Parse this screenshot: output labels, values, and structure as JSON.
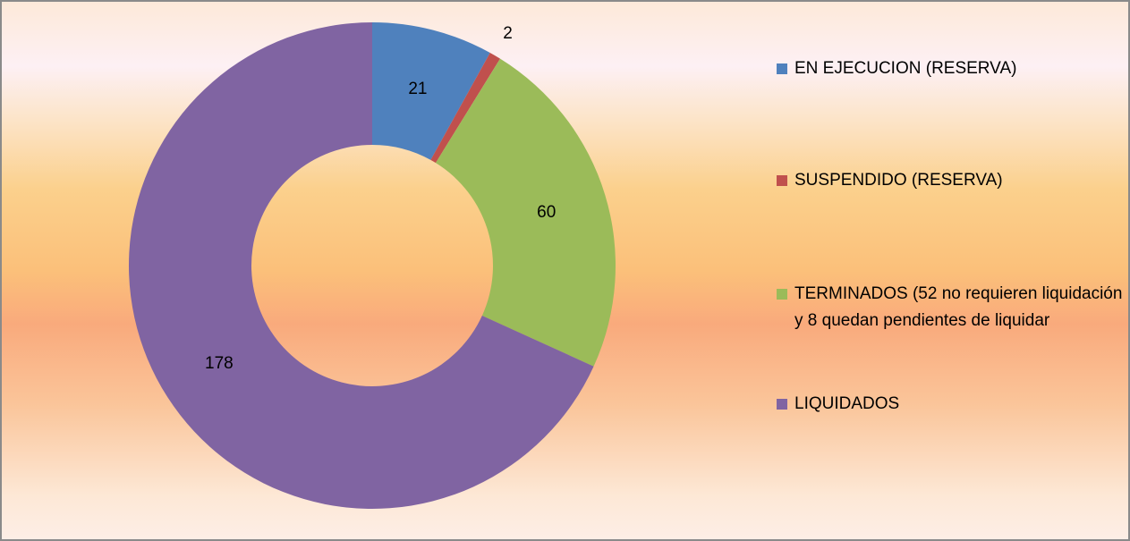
{
  "chart_data": {
    "type": "donut",
    "categories": [
      "EN EJECUCION (RESERVA)",
      "SUSPENDIDO (RESERVA)",
      "TERMINADOS (52 no requieren liquidación y 8 quedan pendientes de liquidar",
      "LIQUIDADOS"
    ],
    "values": [
      21,
      2,
      60,
      178
    ],
    "colors": [
      "#4f81bd",
      "#c0504d",
      "#9bbb59",
      "#8064a2"
    ],
    "legend": "right"
  }
}
